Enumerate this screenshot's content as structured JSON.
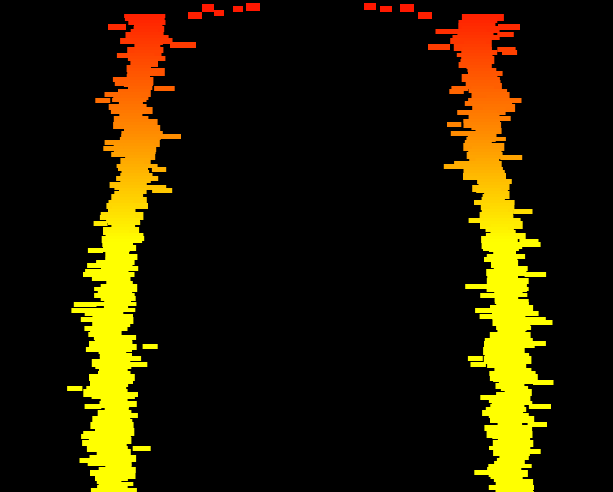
{
  "scene": {
    "description_kind": "abstract-flame-bars",
    "background_color": "#000000",
    "gradient": {
      "top_color": "#ff1400",
      "mid_color": "#ff8c00",
      "bottom_color": "#ffff00"
    },
    "left_column_icon": "flame-bars",
    "right_column_icon": "flame-bars"
  }
}
